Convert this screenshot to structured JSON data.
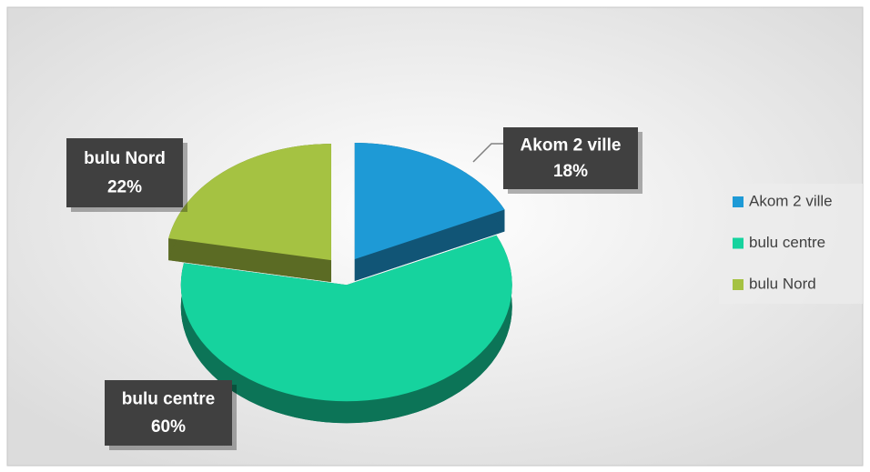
{
  "chart_data": {
    "type": "pie",
    "categories": [
      "Akom 2 ville",
      "bulu centre",
      "bulu Nord"
    ],
    "values": [
      18,
      60,
      22
    ],
    "value_labels": [
      "18%",
      "60%",
      "22%"
    ],
    "colors": [
      "#1e9ad6",
      "#16d39e",
      "#a5c242"
    ],
    "legend": "right"
  }
}
